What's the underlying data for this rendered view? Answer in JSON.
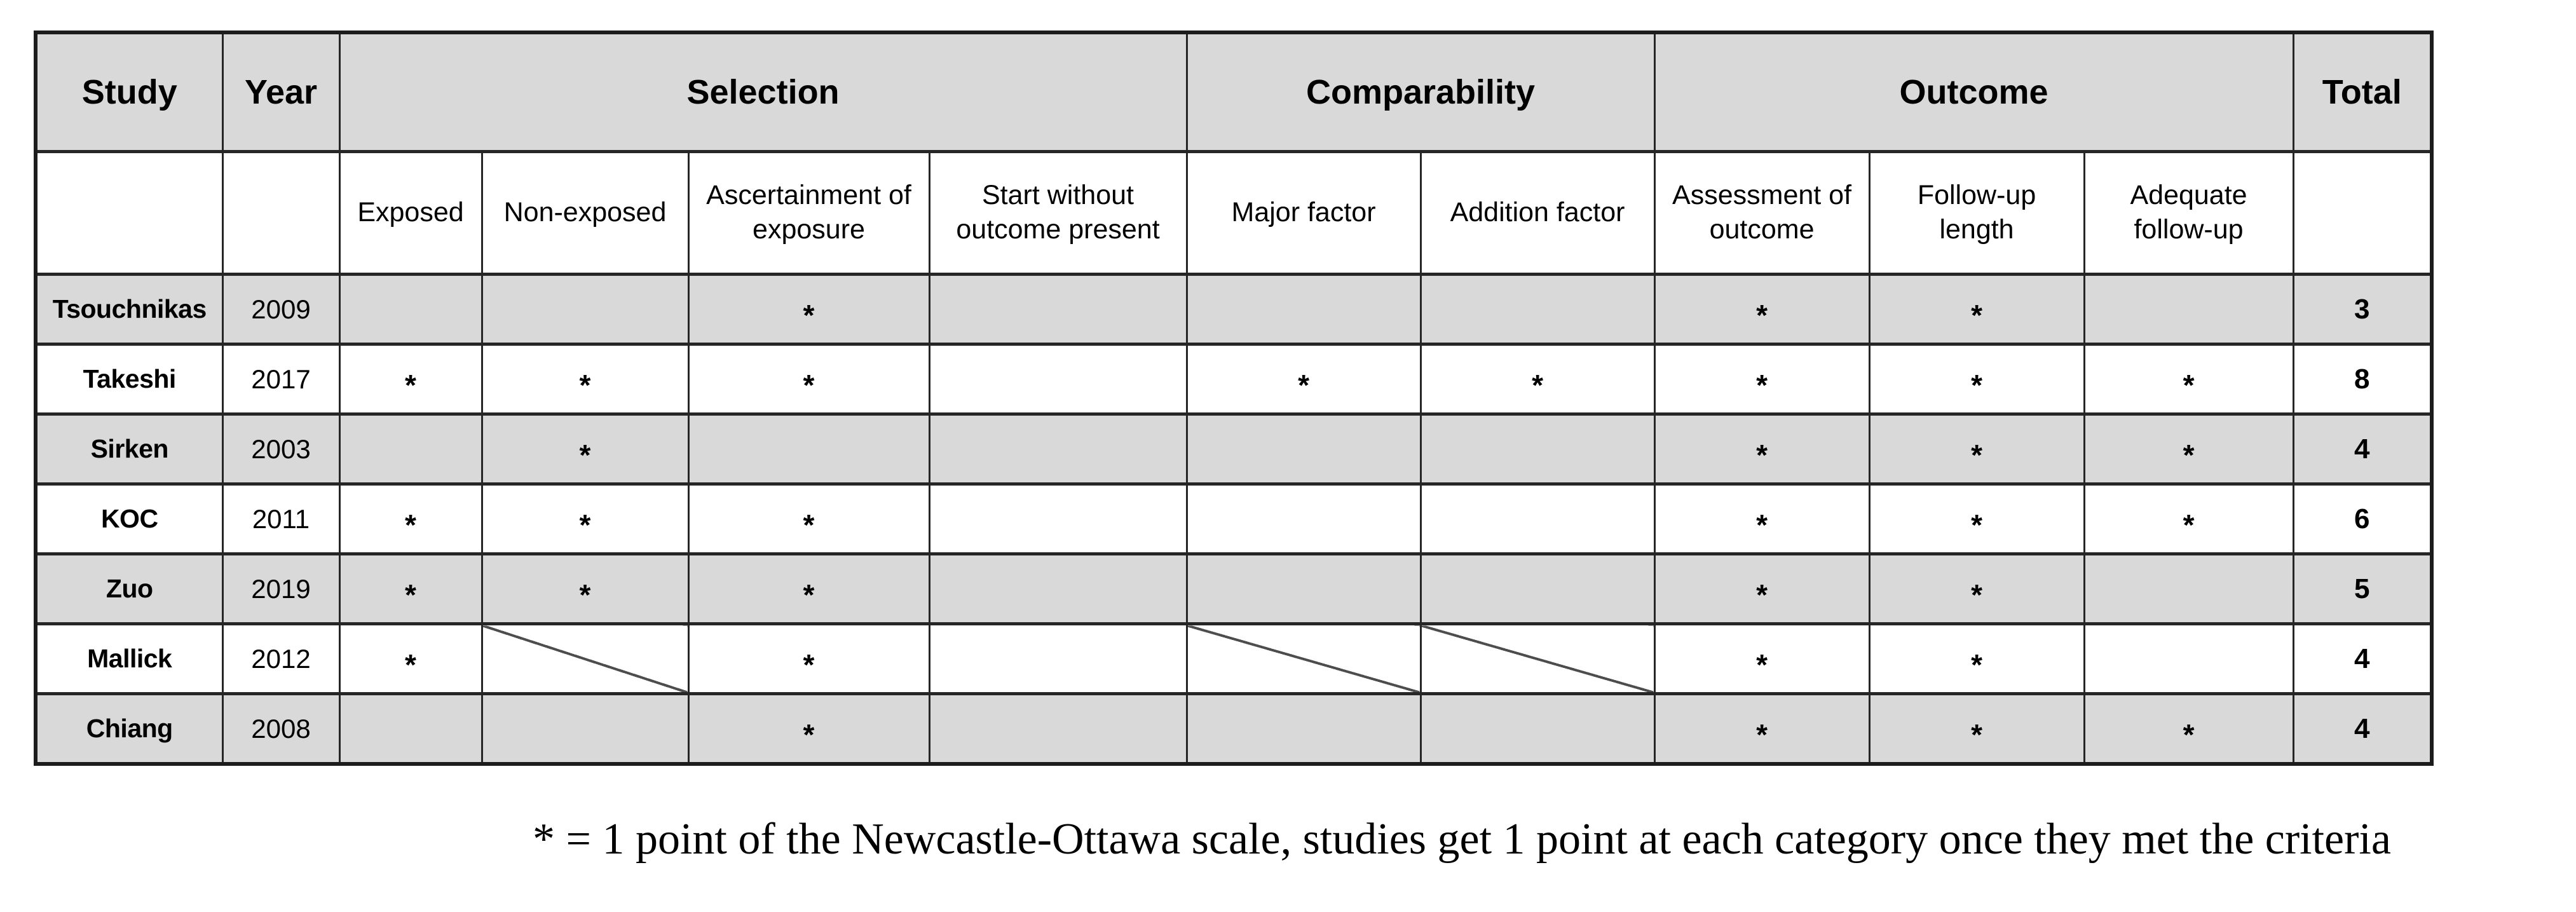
{
  "table": {
    "header_row1": {
      "study": "Study",
      "year": "Year",
      "selection": "Selection",
      "comparability": "Comparability",
      "outcome": "Outcome",
      "total": "Total"
    },
    "criteria": [
      "Exposed",
      "Non-exposed",
      "Ascertainment of exposure",
      "Start without outcome present",
      "Major factor",
      "Addition factor",
      "Assessment of outcome",
      "Follow-up length",
      "Adequate follow-up"
    ],
    "rows": [
      {
        "study": "Tsouchnikas",
        "year": "2009",
        "cells": [
          "",
          "/",
          "*",
          "",
          "/",
          "/",
          "*",
          "*",
          ""
        ],
        "total": "3"
      },
      {
        "study": "Takeshi",
        "year": "2017",
        "cells": [
          "*",
          "*",
          "*",
          "",
          "*",
          "*",
          "*",
          "*",
          "*"
        ],
        "total": "8"
      },
      {
        "study": "Sirken",
        "year": "2003",
        "cells": [
          "",
          "*",
          "",
          "",
          "",
          "",
          "*",
          "*",
          "*"
        ],
        "total": "4"
      },
      {
        "study": "KOC",
        "year": "2011",
        "cells": [
          "*",
          "*",
          "*",
          "",
          "",
          "",
          "*",
          "*",
          "*"
        ],
        "total": "6"
      },
      {
        "study": "Zuo",
        "year": "2019",
        "cells": [
          "*",
          "*",
          "*",
          "",
          "",
          "",
          "*",
          "*",
          ""
        ],
        "total": "5"
      },
      {
        "study": "Mallick",
        "year": "2012",
        "cells": [
          "*",
          "/",
          "*",
          "",
          "/",
          "/",
          "*",
          "*",
          ""
        ],
        "total": "4"
      },
      {
        "study": "Chiang",
        "year": "2008",
        "cells": [
          "",
          "/",
          "*",
          "",
          "/",
          "/",
          "*",
          "*",
          "*"
        ],
        "total": "4"
      }
    ]
  },
  "caption": {
    "text": "* = 1 point of the Newcastle-Ottawa scale, studies get 1 point at each category once they met the criteria"
  },
  "colors": {
    "row_shade": "#d9d9d9",
    "border": "#262626",
    "diagonal": "#4d4d4d"
  }
}
